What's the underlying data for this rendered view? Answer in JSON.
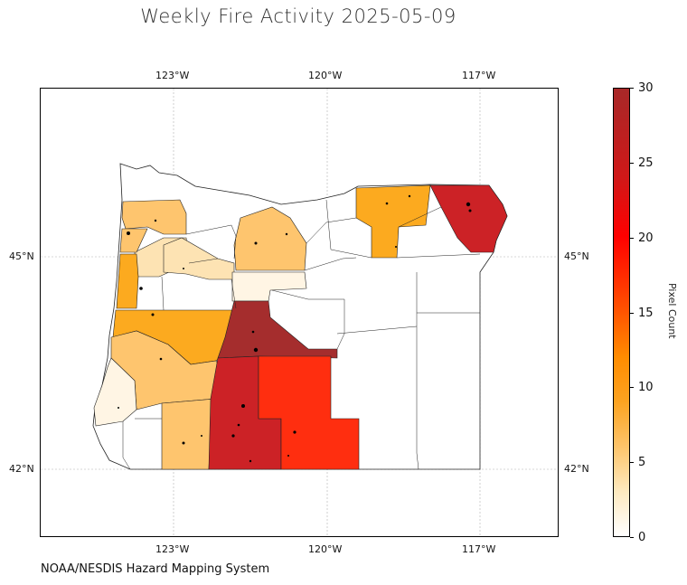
{
  "title": "Weekly Fire Activity 2025-05-09",
  "credit": "NOAA/NESDIS Hazard Mapping System",
  "axes": {
    "lon_ticks": [
      "123°W",
      "120°W",
      "117°W"
    ],
    "lat_ticks": [
      "45°N",
      "42°N"
    ]
  },
  "colorbar": {
    "label": "Pixel Count",
    "ticks": [
      "0",
      "5",
      "10",
      "15",
      "20",
      "25",
      "30"
    ],
    "range": [
      0,
      30
    ]
  },
  "palette": {
    "c0": "#ffffff",
    "c1": "#fff5e4",
    "c2": "#fde3b3",
    "c3": "#fec56e",
    "c4": "#fcaa1f",
    "c5": "#ff2e0f",
    "c6": "#cc2226",
    "c7": "#a52d2d"
  },
  "counties": [
    {
      "name": "c-nw1",
      "fill": "c3"
    },
    {
      "name": "c-nw2",
      "fill": "c2"
    },
    {
      "name": "c-nw3",
      "fill": "c4"
    },
    {
      "name": "c-nw4",
      "fill": "c3"
    },
    {
      "name": "c-n1",
      "fill": "c3"
    },
    {
      "name": "c-n2",
      "fill": "c2"
    },
    {
      "name": "c-n3",
      "fill": "c1"
    },
    {
      "name": "c-ne1",
      "fill": "c4"
    },
    {
      "name": "c-ne2",
      "fill": "c6"
    },
    {
      "name": "c-cw1",
      "fill": "c4"
    },
    {
      "name": "c-cw2",
      "fill": "c3"
    },
    {
      "name": "c-cw3",
      "fill": "c1"
    },
    {
      "name": "c-c1",
      "fill": "c7"
    },
    {
      "name": "c-sw1",
      "fill": "c3"
    },
    {
      "name": "c-s1",
      "fill": "c6"
    },
    {
      "name": "c-s2",
      "fill": "c5"
    }
  ]
}
